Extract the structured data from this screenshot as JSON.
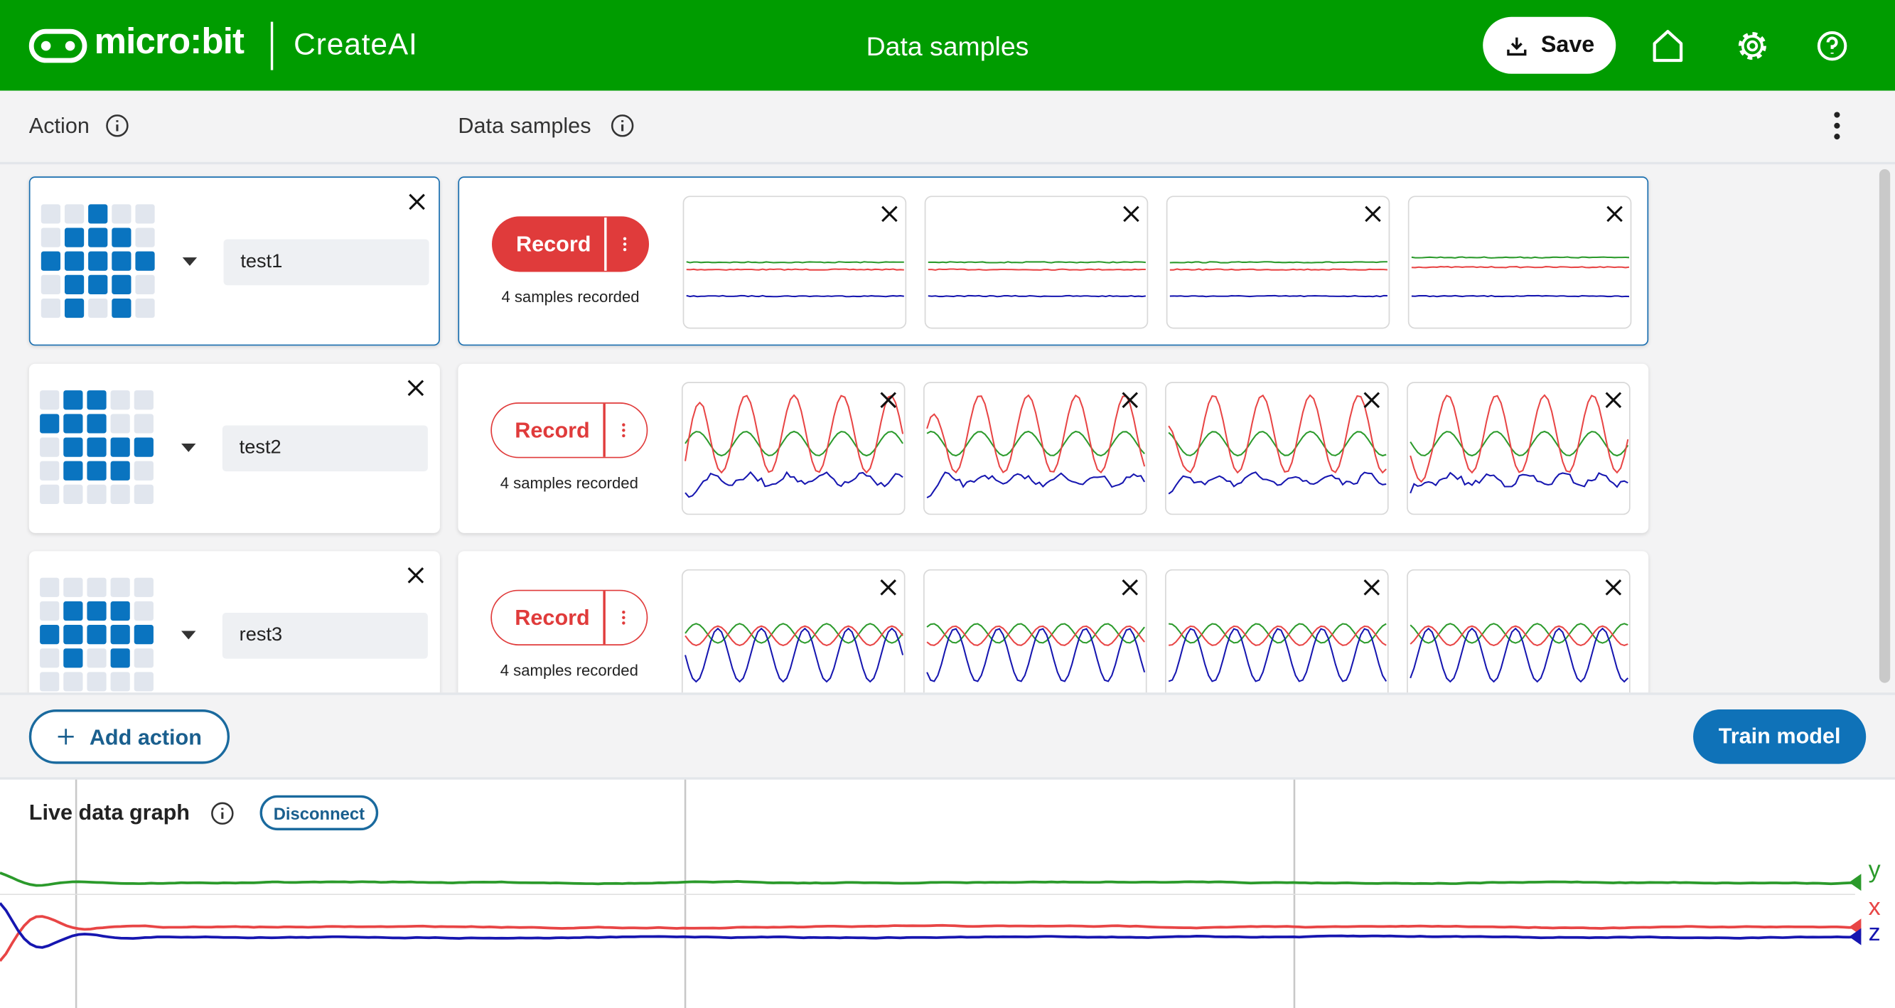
{
  "header": {
    "logo": "micro:bit",
    "app": "CreateAI",
    "title": "Data samples",
    "save": "Save"
  },
  "columns": {
    "action": "Action",
    "samples": "Data samples"
  },
  "actions": [
    {
      "name": "test1",
      "record": "Record",
      "status": "4 samples recorded"
    },
    {
      "name": "test2",
      "record": "Record",
      "status": "4 samples recorded"
    },
    {
      "name": "rest3",
      "record": "Record",
      "status": "4 samples recorded"
    }
  ],
  "footer": {
    "add": "Add action",
    "train": "Train model"
  },
  "live": {
    "title": "Live data graph",
    "disconnect": "Disconnect",
    "axes": [
      "y",
      "x",
      "z"
    ]
  }
}
